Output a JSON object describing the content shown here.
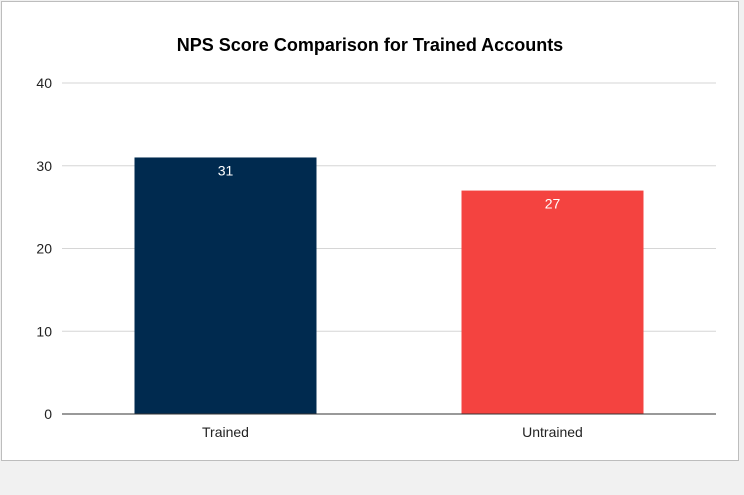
{
  "chart_data": {
    "type": "bar",
    "title": "NPS Score Comparison for Trained Accounts",
    "xlabel": "",
    "ylabel": "",
    "categories": [
      "Trained",
      "Untrained"
    ],
    "values": [
      31,
      27
    ],
    "data_labels": [
      "31",
      "27"
    ],
    "bar_colors": [
      "#002a4f",
      "#f44340"
    ],
    "ylim": [
      0,
      40
    ],
    "yticks": [
      0,
      10,
      20,
      30,
      40
    ],
    "ytick_labels": [
      "0",
      "10",
      "20",
      "30",
      "40"
    ],
    "grid": true,
    "legend": "none"
  },
  "colors": {
    "grid": "#d6d6d6",
    "axis": "#333333",
    "data_label": "#ffffff"
  }
}
